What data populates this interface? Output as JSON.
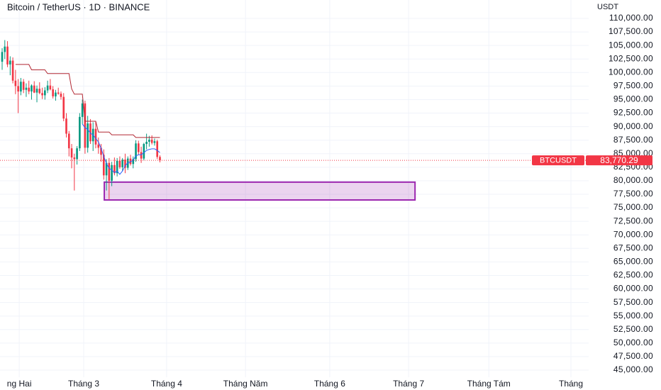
{
  "chart_data": {
    "type": "candlestick",
    "title": "Bitcoin / TetherUS · 1D · BINANCE",
    "y_axis_label": "USDT",
    "up_color": "#089981",
    "down_color": "#f23645",
    "grid": true,
    "open": [
      102000,
      103800,
      104800,
      101500,
      102200,
      98500,
      97500,
      96500,
      98300,
      96800,
      97200,
      96500,
      97600,
      96300,
      97000,
      96200,
      95800,
      96700,
      97600,
      96900,
      95600,
      96300,
      96100,
      95500,
      91500,
      88700,
      86000,
      84300,
      84000,
      86000,
      91800,
      94300,
      86100,
      90600,
      87300,
      89600,
      86700,
      86100,
      84800,
      81000,
      83300,
      80000,
      82900,
      81400,
      83700,
      82500,
      83900,
      82400,
      84100,
      83100,
      84000,
      86900,
      85300,
      84100,
      86800,
      87200,
      87600,
      87000,
      87300,
      84400
    ],
    "high": [
      104500,
      106000,
      105800,
      103000,
      102800,
      100500,
      98800,
      99000,
      98800,
      98000,
      98500,
      97800,
      98400,
      97600,
      98200,
      97200,
      97300,
      98500,
      98800,
      97500,
      96800,
      97200,
      96500,
      96200,
      92500,
      89200,
      86800,
      85000,
      86400,
      92500,
      95000,
      94800,
      92000,
      91400,
      90800,
      91000,
      88000,
      86800,
      85800,
      84000,
      84200,
      83500,
      84300,
      84200,
      84500,
      84200,
      85000,
      84500,
      84800,
      84500,
      87500,
      87400,
      86300,
      87000,
      88700,
      88300,
      88400,
      87800,
      87600,
      84700
    ],
    "low": [
      100500,
      102500,
      101000,
      99500,
      98000,
      96000,
      92500,
      95800,
      96200,
      95500,
      96000,
      95000,
      96200,
      94500,
      96000,
      95100,
      95000,
      96200,
      96700,
      95200,
      94800,
      95900,
      95000,
      91000,
      88000,
      84500,
      82300,
      78200,
      83000,
      85500,
      90500,
      85000,
      85200,
      86800,
      85500,
      86000,
      85000,
      83500,
      80200,
      78200,
      76600,
      79000,
      81000,
      80800,
      82200,
      81800,
      81400,
      82000,
      82800,
      82300,
      83500,
      84800,
      83300,
      83800,
      85800,
      86300,
      86700,
      86500,
      84000,
      83400
    ],
    "close": [
      103800,
      104800,
      101500,
      102200,
      98500,
      97500,
      96500,
      98300,
      96800,
      97200,
      96500,
      97600,
      96300,
      97000,
      96200,
      95800,
      96700,
      97600,
      96900,
      95600,
      96300,
      96100,
      95500,
      91500,
      88700,
      86000,
      84300,
      84000,
      86000,
      91800,
      94300,
      86100,
      90600,
      87300,
      89600,
      86700,
      86100,
      84800,
      81000,
      83300,
      80000,
      82900,
      81400,
      83700,
      82500,
      83900,
      82400,
      84100,
      83100,
      84000,
      86900,
      85300,
      84100,
      86800,
      87200,
      87600,
      87000,
      87300,
      84400,
      83770.29
    ],
    "lines": [
      {
        "color": "#b22833",
        "values": [
          null,
          null,
          null,
          null,
          null,
          101500,
          101500,
          101500,
          101500,
          101500,
          101500,
          100500,
          100500,
          100500,
          100500,
          100500,
          100500,
          99800,
          99800,
          99800,
          99800,
          99800,
          99800,
          99800,
          99800,
          99800,
          97000,
          96000,
          96000,
          96000,
          96000,
          91000,
          91000,
          91000,
          91000,
          91000,
          89000,
          89000,
          89000,
          89000,
          89000,
          88500,
          88500,
          88500,
          88500,
          88500,
          88500,
          88500,
          88500,
          88500,
          88000,
          88000,
          88000,
          88000,
          88000,
          88000,
          88000,
          88000,
          88000,
          88000
        ]
      },
      {
        "color": "#2962ff",
        "values": [
          null,
          null,
          null,
          null,
          null,
          null,
          null,
          null,
          null,
          null,
          null,
          null,
          null,
          null,
          null,
          null,
          null,
          null,
          null,
          null,
          null,
          null,
          null,
          null,
          null,
          null,
          null,
          null,
          null,
          null,
          90500,
          89800,
          89500,
          88800,
          88500,
          87800,
          87200,
          86000,
          84500,
          83200,
          82300,
          82000,
          81500,
          81800,
          81200,
          81800,
          82800,
          83300,
          83500,
          83800,
          84600,
          84800,
          84800,
          85200,
          85600,
          85800,
          85900,
          85900,
          85600,
          85200
        ]
      }
    ],
    "zone": {
      "x": [
        38.2,
        154.4
      ],
      "y": [
        76450,
        79750
      ],
      "color": "#9c27b0"
    },
    "last_price": {
      "name": "BTCUSDT",
      "value": 83770.29,
      "label": "83,770.29"
    },
    "xlim": [
      -0.8,
      218.8
    ],
    "xticks": [
      {
        "value": 6.4,
        "label": "ng Hai"
      },
      {
        "value": 30.5,
        "label": "Tháng 3"
      },
      {
        "value": 61.5,
        "label": "Tháng 4"
      },
      {
        "value": 91,
        "label": "Tháng Năm"
      },
      {
        "value": 122.5,
        "label": "Tháng 6"
      },
      {
        "value": 152,
        "label": "Tháng 7"
      },
      {
        "value": 182,
        "label": "Tháng Tám"
      },
      {
        "value": 212.7,
        "label": "Tháng"
      }
    ],
    "ylim": [
      45000,
      110000
    ],
    "yticks": [
      {
        "value": 45000,
        "label": "45,000.00"
      },
      {
        "value": 47500,
        "label": "47,500.00"
      },
      {
        "value": 50000,
        "label": "50,000.00"
      },
      {
        "value": 52500,
        "label": "52,500.00"
      },
      {
        "value": 55000,
        "label": "55,000.00"
      },
      {
        "value": 57500,
        "label": "57,500.00"
      },
      {
        "value": 60000,
        "label": "60,000.00"
      },
      {
        "value": 62500,
        "label": "62,500.00"
      },
      {
        "value": 65000,
        "label": "65,000.00"
      },
      {
        "value": 67500,
        "label": "67,500.00"
      },
      {
        "value": 70000,
        "label": "70,000.00"
      },
      {
        "value": 72500,
        "label": "72,500.00"
      },
      {
        "value": 75000,
        "label": "75,000.00"
      },
      {
        "value": 77500,
        "label": "77,500.00"
      },
      {
        "value": 80000,
        "label": "80,000.00"
      },
      {
        "value": 82500,
        "label": "82,500.00"
      },
      {
        "value": 85000,
        "label": "85,000.00"
      },
      {
        "value": 87500,
        "label": "87,500.00"
      },
      {
        "value": 90000,
        "label": "90,000.00"
      },
      {
        "value": 92500,
        "label": "92,500.00"
      },
      {
        "value": 95000,
        "label": "95,000.00"
      },
      {
        "value": 97500,
        "label": "97,500.00"
      },
      {
        "value": 100000,
        "label": "100,000.00"
      },
      {
        "value": 102500,
        "label": "102,500.00"
      },
      {
        "value": 105000,
        "label": "105,000.00"
      },
      {
        "value": 107500,
        "label": "107,500.00"
      },
      {
        "value": 110000,
        "label": "110,000.00"
      }
    ]
  }
}
